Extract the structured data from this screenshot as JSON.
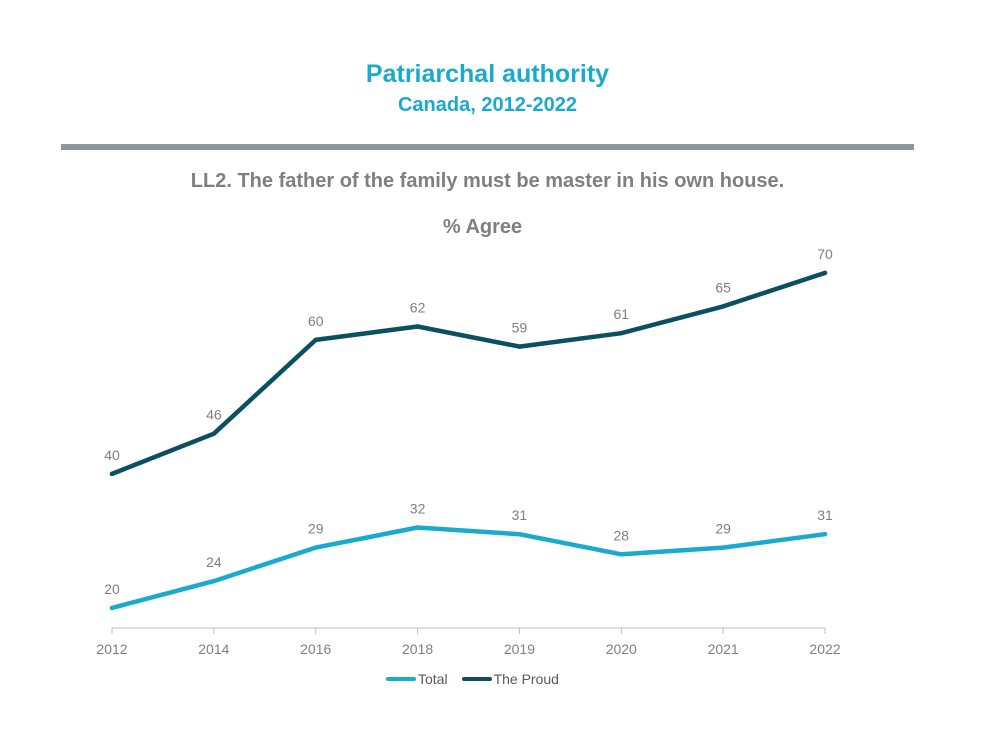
{
  "header": {
    "title": "Patriarchal authority",
    "subtitle": "Canada, 2012-2022"
  },
  "question": "LL2. The father of the family must be master in his own house.",
  "chart_data": {
    "type": "line",
    "title": "% Agree",
    "x": [
      "2012",
      "2014",
      "2016",
      "2018",
      "2019",
      "2020",
      "2021",
      "2022"
    ],
    "series": [
      {
        "name": "Total",
        "color": "#1aaad0",
        "values": [
          20,
          24,
          29,
          32,
          31,
          28,
          29,
          31
        ]
      },
      {
        "name": "The Proud",
        "color": "#0b4f63",
        "values": [
          40,
          46,
          60,
          62,
          59,
          61,
          65,
          70
        ]
      }
    ],
    "ylim": [
      17,
      77
    ],
    "grid": false,
    "legend": "bottom-center"
  }
}
